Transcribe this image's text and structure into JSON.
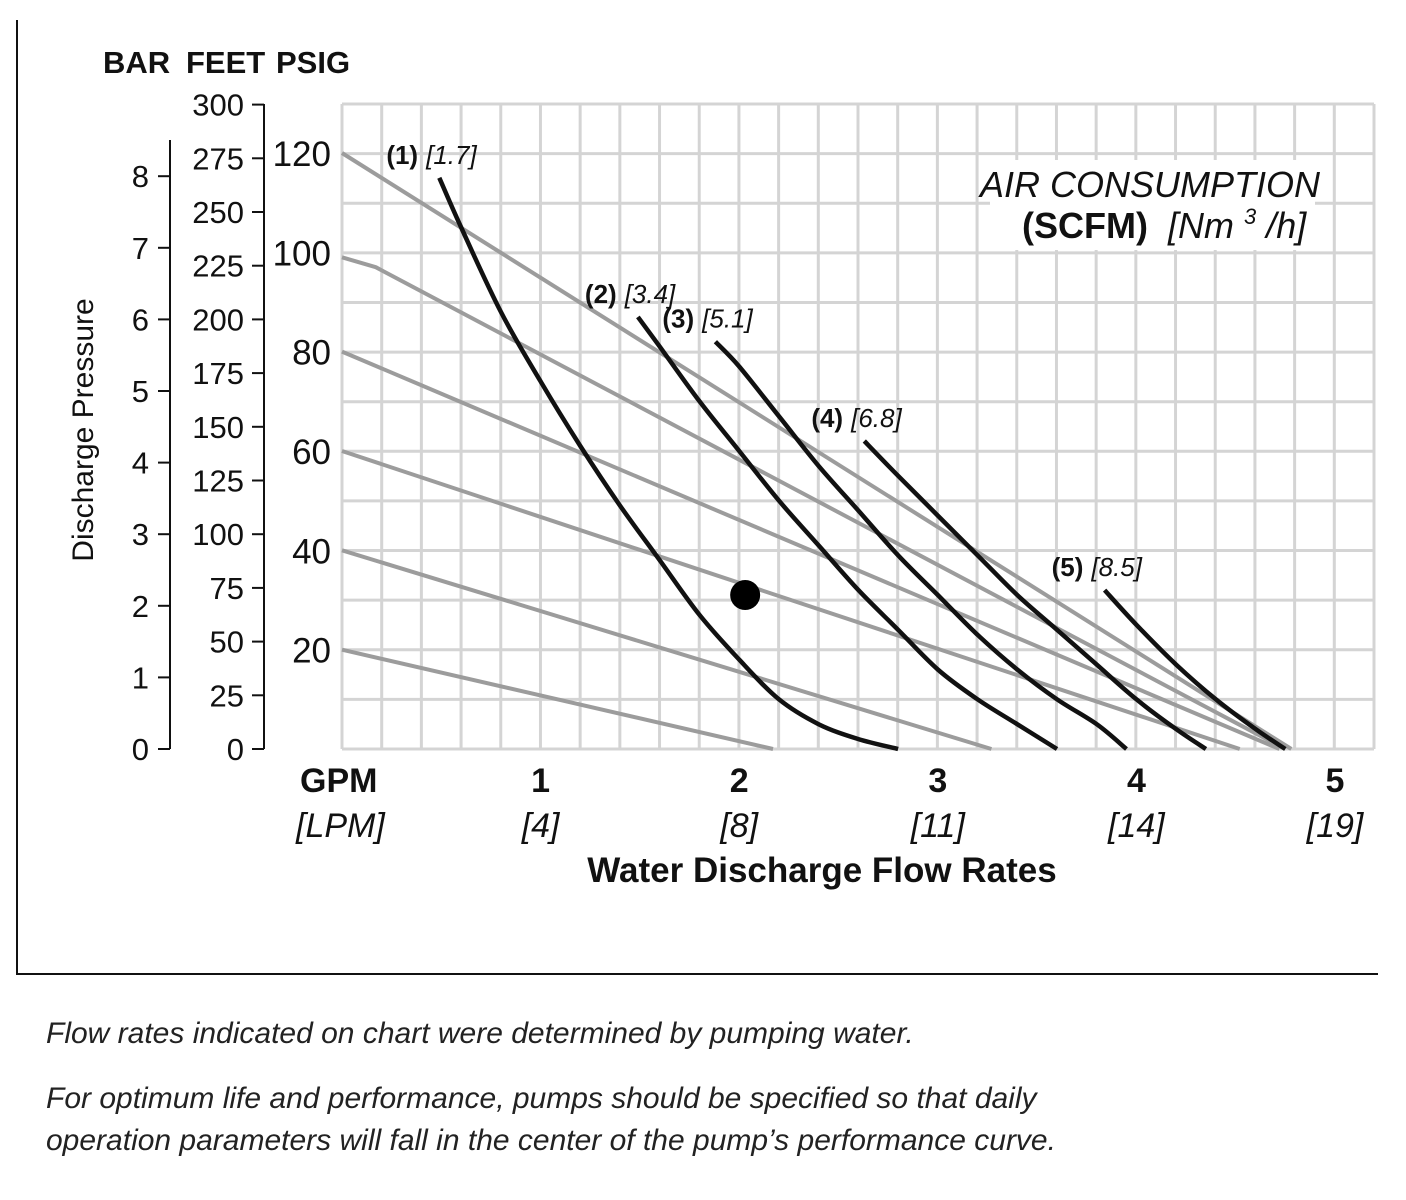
{
  "chart_data": {
    "type": "line",
    "axis_units": {
      "bar": "BAR",
      "feet": "FEET",
      "psig": "PSIG"
    },
    "ylabel": "Discharge Pressure",
    "xlabel": "Water Discharge Flow Rates",
    "x_unit_primary": "GPM",
    "x_unit_secondary": "[LPM]",
    "xlim": [
      0,
      5.2
    ],
    "ylim": [
      0,
      120
    ],
    "x_ticks": [
      {
        "value": 1,
        "label": "1",
        "sub": "[4]"
      },
      {
        "value": 2,
        "label": "2",
        "sub": "[8]"
      },
      {
        "value": 3,
        "label": "3",
        "sub": "[11]"
      },
      {
        "value": 4,
        "label": "4",
        "sub": "[14]"
      },
      {
        "value": 5,
        "label": "5",
        "sub": "[19]"
      }
    ],
    "psig_ticks": [
      "20",
      "40",
      "60",
      "80",
      "100",
      "120"
    ],
    "feet_ticks": [
      "0",
      "25",
      "50",
      "75",
      "100",
      "125",
      "150",
      "175",
      "200",
      "225",
      "250",
      "275",
      "300"
    ],
    "bar_ticks": [
      "0",
      "1",
      "2",
      "3",
      "4",
      "5",
      "6",
      "7",
      "8"
    ],
    "grid": true,
    "legend_title": {
      "line1": "AIR CONSUMPTION",
      "line2_bold": "(SCFM)",
      "line2_unit": "[Nm",
      "line2_sup": "3",
      "line2_end": "/h]"
    },
    "pressure_lines": [
      {
        "x": [
          0,
          2.17
        ],
        "y": [
          20,
          0
        ]
      },
      {
        "x": [
          0,
          3.27
        ],
        "y": [
          40,
          0
        ]
      },
      {
        "x": [
          0,
          4.52
        ],
        "y": [
          60,
          0
        ]
      },
      {
        "x": [
          0,
          4.72
        ],
        "y": [
          80,
          0
        ]
      },
      {
        "x": [
          0,
          0.17,
          4.75
        ],
        "y": [
          99,
          97,
          0
        ]
      },
      {
        "x": [
          0,
          4.78
        ],
        "y": [
          120,
          0
        ]
      }
    ],
    "series": [
      {
        "name": "(1)",
        "nm": "[1.7]",
        "x": [
          0.49,
          0.6,
          0.8,
          1.0,
          1.2,
          1.4,
          1.6,
          1.8,
          2.0,
          2.2,
          2.4,
          2.6,
          2.8
        ],
        "y": [
          115,
          105,
          88,
          74,
          61,
          49,
          38,
          27,
          18,
          10,
          5,
          2,
          0
        ]
      },
      {
        "name": "(2)",
        "nm": "[3.4]",
        "x": [
          1.49,
          1.6,
          1.8,
          2.0,
          2.2,
          2.4,
          2.6,
          2.8,
          3.0,
          3.2,
          3.4,
          3.6
        ],
        "y": [
          87,
          81,
          70,
          60,
          50,
          41,
          32,
          24,
          16,
          10,
          5,
          0
        ]
      },
      {
        "name": "(3)",
        "nm": "[5.1]",
        "x": [
          1.88,
          2.0,
          2.2,
          2.4,
          2.6,
          2.8,
          3.0,
          3.2,
          3.4,
          3.6,
          3.8,
          3.95
        ],
        "y": [
          82,
          77,
          67,
          57,
          48,
          39,
          31,
          23,
          16,
          10,
          5,
          0
        ]
      },
      {
        "name": "(4)",
        "nm": "[6.8]",
        "x": [
          2.63,
          2.8,
          3.0,
          3.2,
          3.4,
          3.6,
          3.8,
          4.0,
          4.2,
          4.35
        ],
        "y": [
          62,
          55,
          47,
          39,
          31,
          24,
          17,
          10,
          4,
          0
        ]
      },
      {
        "name": "(5)",
        "nm": "[8.5]",
        "x": [
          3.84,
          4.0,
          4.2,
          4.4,
          4.6,
          4.75
        ],
        "y": [
          32,
          25,
          17,
          10,
          4,
          0
        ]
      }
    ],
    "operating_point": {
      "x": 2.03,
      "y": 31
    }
  },
  "notes": [
    "Flow rates indicated on chart were determined by pumping water.",
    "For optimum life and performance, pumps should be specified so that daily",
    "operation parameters will fall in the center of the pump’s performance curve."
  ]
}
